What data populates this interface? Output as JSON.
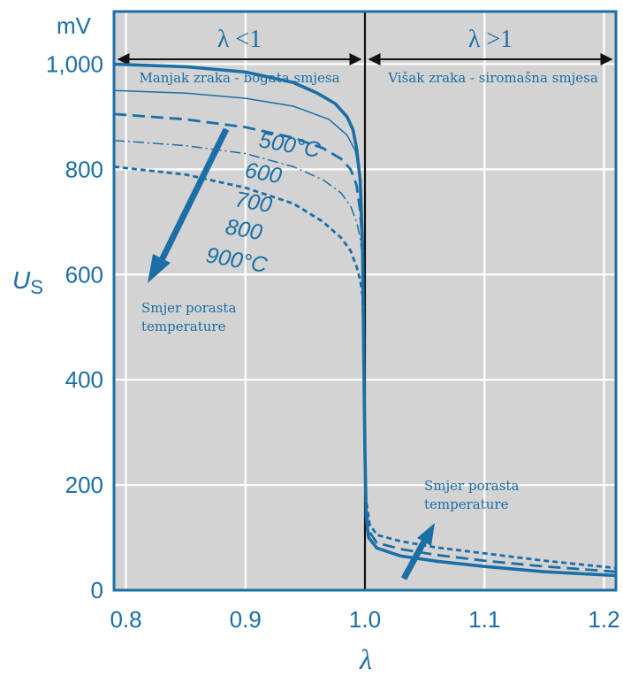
{
  "chart_data": {
    "type": "line",
    "y_unit": "mV",
    "y_axis_label": "U",
    "y_axis_label_sub": "S",
    "x_axis_label": "λ",
    "xlim": [
      0.79,
      1.21
    ],
    "ylim": [
      0,
      1100
    ],
    "x_ticks": [
      "0.8",
      "0.9",
      "1.0",
      "1.1",
      "1.2"
    ],
    "x_tick_values": [
      0.8,
      0.9,
      1.0,
      1.1,
      1.2
    ],
    "y_ticks": [
      "0",
      "200",
      "400",
      "600",
      "800",
      "1,000"
    ],
    "y_tick_values": [
      0,
      200,
      400,
      600,
      800,
      1000
    ],
    "grid": true,
    "stoichiometric_line": 1.0,
    "regions": [
      {
        "symbol": "λ <1",
        "text": "Manjak zraka - bogata smjesa"
      },
      {
        "symbol": "λ >1",
        "text": "Višak zraka - siromašna smjesa"
      }
    ],
    "series": [
      {
        "name": "500°C",
        "style": "solid-thick",
        "points": [
          [
            0.79,
            1000
          ],
          [
            0.85,
            995
          ],
          [
            0.9,
            985
          ],
          [
            0.94,
            965
          ],
          [
            0.96,
            945
          ],
          [
            0.975,
            925
          ],
          [
            0.985,
            900
          ],
          [
            0.99,
            875
          ],
          [
            0.993,
            840
          ],
          [
            0.996,
            780
          ],
          [
            0.998,
            650
          ],
          [
            0.999,
            450
          ],
          [
            1.0,
            260
          ],
          [
            1.001,
            140
          ],
          [
            1.003,
            100
          ],
          [
            1.01,
            80
          ],
          [
            1.03,
            65
          ],
          [
            1.06,
            55
          ],
          [
            1.1,
            45
          ],
          [
            1.15,
            35
          ],
          [
            1.21,
            28
          ]
        ]
      },
      {
        "name": "600",
        "style": "solid-thin",
        "points": [
          [
            0.79,
            950
          ],
          [
            0.85,
            945
          ],
          [
            0.9,
            935
          ],
          [
            0.94,
            920
          ],
          [
            0.97,
            895
          ],
          [
            0.985,
            865
          ],
          [
            0.992,
            835
          ],
          [
            0.996,
            780
          ],
          [
            0.998,
            650
          ]
        ]
      },
      {
        "name": "700",
        "style": "dashed",
        "points": [
          [
            0.79,
            905
          ],
          [
            0.85,
            895
          ],
          [
            0.9,
            880
          ],
          [
            0.94,
            860
          ],
          [
            0.965,
            840
          ],
          [
            0.98,
            820
          ],
          [
            0.988,
            800
          ],
          [
            0.993,
            770
          ],
          [
            0.996,
            720
          ],
          [
            0.998,
            650
          ],
          [
            0.999,
            450
          ],
          [
            1.0,
            260
          ],
          [
            1.001,
            150
          ],
          [
            1.004,
            110
          ],
          [
            1.01,
            90
          ],
          [
            1.03,
            78
          ],
          [
            1.06,
            67
          ],
          [
            1.1,
            56
          ],
          [
            1.15,
            45
          ],
          [
            1.21,
            35
          ]
        ]
      },
      {
        "name": "800",
        "style": "dash-dot",
        "points": [
          [
            0.79,
            855
          ],
          [
            0.85,
            845
          ],
          [
            0.9,
            830
          ],
          [
            0.94,
            805
          ],
          [
            0.965,
            780
          ],
          [
            0.98,
            755
          ],
          [
            0.988,
            730
          ],
          [
            0.993,
            700
          ],
          [
            0.996,
            670
          ],
          [
            0.998,
            630
          ]
        ]
      },
      {
        "name": "900°C",
        "style": "dotted",
        "points": [
          [
            0.79,
            805
          ],
          [
            0.85,
            790
          ],
          [
            0.9,
            765
          ],
          [
            0.94,
            735
          ],
          [
            0.965,
            700
          ],
          [
            0.98,
            670
          ],
          [
            0.988,
            645
          ],
          [
            0.993,
            615
          ],
          [
            0.996,
            590
          ],
          [
            0.998,
            560
          ],
          [
            0.999,
            450
          ],
          [
            1.0,
            270
          ],
          [
            1.001,
            170
          ],
          [
            1.004,
            125
          ],
          [
            1.01,
            105
          ],
          [
            1.03,
            93
          ],
          [
            1.06,
            81
          ],
          [
            1.1,
            70
          ],
          [
            1.15,
            56
          ],
          [
            1.21,
            42
          ]
        ]
      }
    ],
    "annotations": [
      {
        "text_line1": "Smjer porasta",
        "text_line2": "temperature",
        "arrow": "down-left",
        "side": "rich"
      },
      {
        "text_line1": "Smjer porasta",
        "text_line2": "temperature",
        "arrow": "up-right",
        "side": "lean"
      }
    ],
    "colors": {
      "accent": "#1b6ea6",
      "plot_bg": "#d3d3d3",
      "grid": "#ffffff",
      "divider": "#111111",
      "arrow": "#111111"
    }
  }
}
